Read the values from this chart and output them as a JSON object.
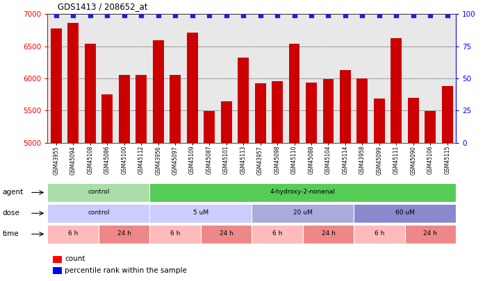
{
  "title": "GDS1413 / 208652_at",
  "samples": [
    "GSM43955",
    "GSM45094",
    "GSM45108",
    "GSM45086",
    "GSM45100",
    "GSM45112",
    "GSM43956",
    "GSM45097",
    "GSM45109",
    "GSM45087",
    "GSM45101",
    "GSM45113",
    "GSM43957",
    "GSM45098",
    "GSM45110",
    "GSM45088",
    "GSM45104",
    "GSM45114",
    "GSM43958",
    "GSM45099",
    "GSM45111",
    "GSM45090",
    "GSM45106",
    "GSM45115"
  ],
  "counts": [
    6780,
    6860,
    6540,
    5750,
    6050,
    6050,
    6590,
    6050,
    6710,
    5490,
    5640,
    6320,
    5920,
    5960,
    6540,
    5930,
    5990,
    6130,
    6000,
    5690,
    6620,
    5700,
    5490,
    5880
  ],
  "ylim_left": [
    5000,
    7000
  ],
  "ylim_right": [
    0,
    100
  ],
  "yticks_left": [
    5000,
    5500,
    6000,
    6500,
    7000
  ],
  "yticks_right": [
    0,
    25,
    50,
    75,
    100
  ],
  "bar_color": "#cc0000",
  "percentile_color": "#2222cc",
  "bg_color": "#e8e8e8",
  "agent_groups": [
    {
      "label": "control",
      "start": 0,
      "end": 6,
      "color": "#aaddaa"
    },
    {
      "label": "4-hydroxy-2-nonenal",
      "start": 6,
      "end": 24,
      "color": "#55cc55"
    }
  ],
  "dose_groups": [
    {
      "label": "control",
      "start": 0,
      "end": 6,
      "color": "#ccccff"
    },
    {
      "label": "5 uM",
      "start": 6,
      "end": 12,
      "color": "#ccccff"
    },
    {
      "label": "20 uM",
      "start": 12,
      "end": 18,
      "color": "#aaaadd"
    },
    {
      "label": "60 uM",
      "start": 18,
      "end": 24,
      "color": "#8888cc"
    }
  ],
  "time_groups": [
    {
      "label": "6 h",
      "start": 0,
      "end": 3,
      "color": "#ffbbbb"
    },
    {
      "label": "24 h",
      "start": 3,
      "end": 6,
      "color": "#ee8888"
    },
    {
      "label": "6 h",
      "start": 6,
      "end": 9,
      "color": "#ffbbbb"
    },
    {
      "label": "24 h",
      "start": 9,
      "end": 12,
      "color": "#ee8888"
    },
    {
      "label": "6 h",
      "start": 12,
      "end": 15,
      "color": "#ffbbbb"
    },
    {
      "label": "24 h",
      "start": 15,
      "end": 18,
      "color": "#ee8888"
    },
    {
      "label": "6 h",
      "start": 18,
      "end": 21,
      "color": "#ffbbbb"
    },
    {
      "label": "24 h",
      "start": 21,
      "end": 24,
      "color": "#ee8888"
    }
  ]
}
